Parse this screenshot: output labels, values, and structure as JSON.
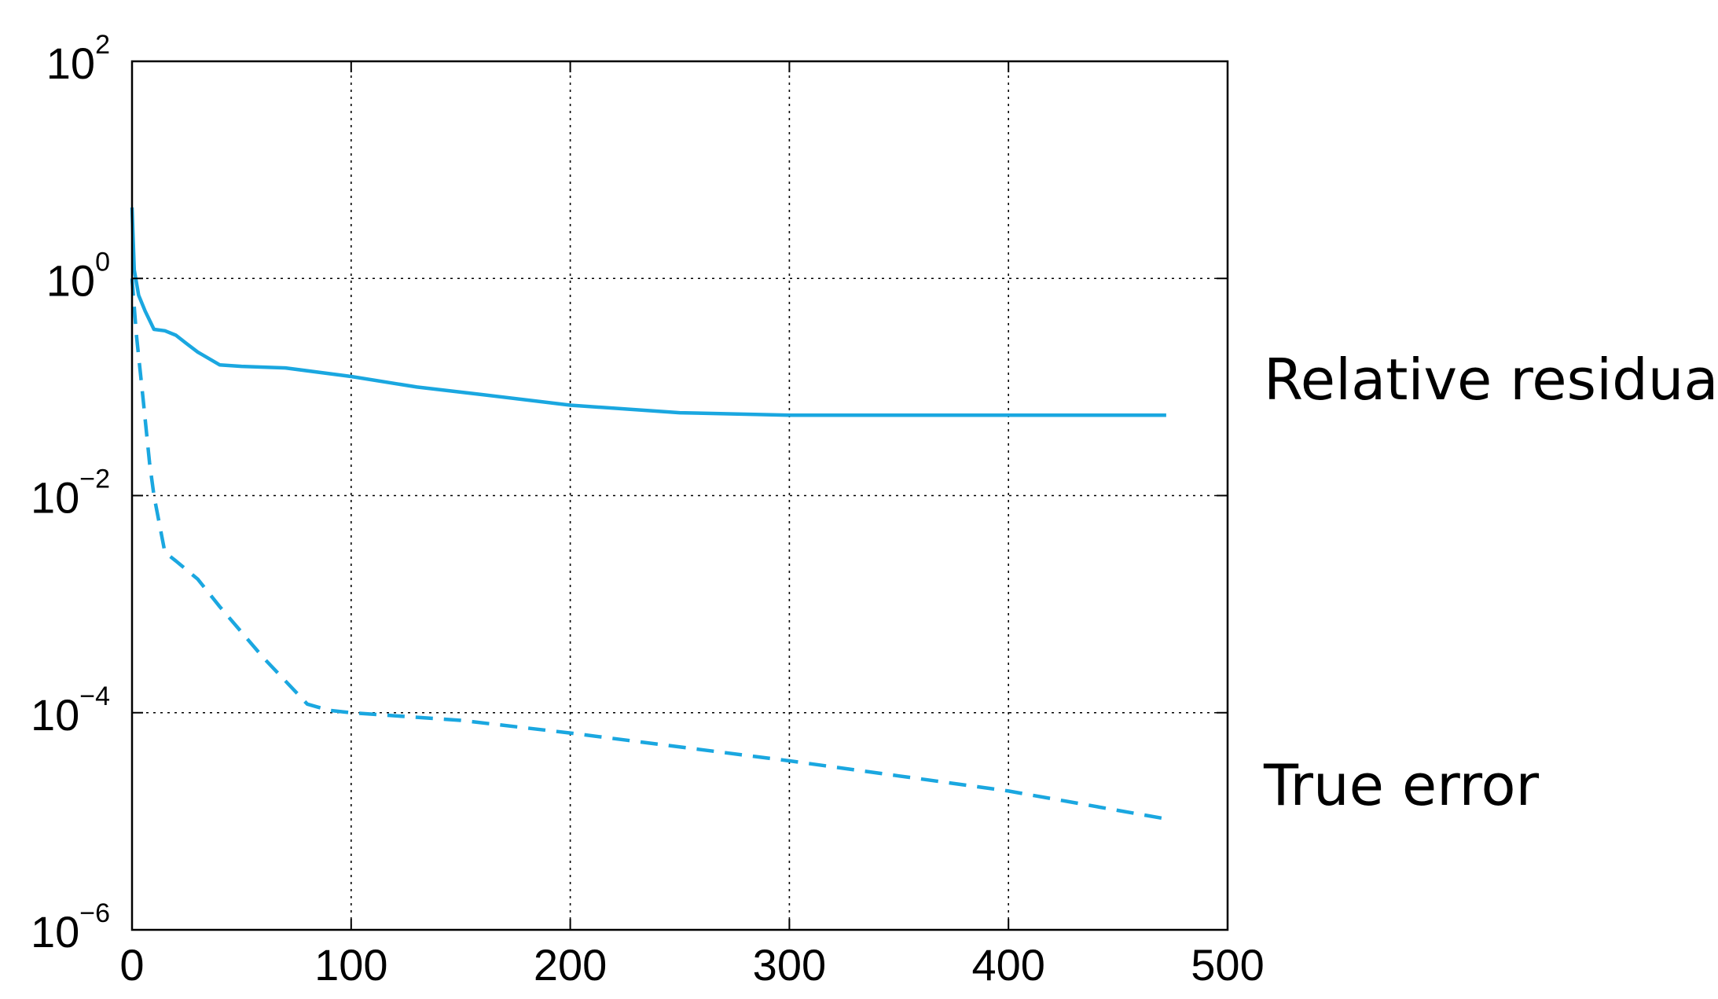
{
  "chart_data": {
    "type": "line",
    "title": "",
    "xlabel": "",
    "ylabel": "",
    "xlim": [
      0,
      500
    ],
    "ylim": [
      1e-06,
      100
    ],
    "yscale": "log",
    "grid": true,
    "xticks": [
      0,
      100,
      200,
      300,
      400,
      500
    ],
    "xtick_labels": [
      "0",
      "100",
      "200",
      "300",
      "400",
      "500"
    ],
    "yticks": [
      1e-06,
      0.0001,
      0.01,
      1,
      100
    ],
    "ytick_labels": [
      {
        "base": "10",
        "exp": "−6"
      },
      {
        "base": "10",
        "exp": "−4"
      },
      {
        "base": "10",
        "exp": "−2"
      },
      {
        "base": "10",
        "exp": "0"
      },
      {
        "base": "10",
        "exp": "2"
      }
    ],
    "series": [
      {
        "name": "Relative residual",
        "style": "solid",
        "color": "#1aa7e0",
        "x": [
          0,
          1,
          3,
          6,
          10,
          15,
          20,
          25,
          30,
          40,
          50,
          70,
          100,
          130,
          160,
          200,
          250,
          300,
          350,
          400,
          472
        ],
        "y": [
          4.5,
          1.2,
          0.7,
          0.5,
          0.34,
          0.33,
          0.3,
          0.25,
          0.21,
          0.16,
          0.155,
          0.15,
          0.125,
          0.1,
          0.085,
          0.068,
          0.058,
          0.055,
          0.055,
          0.055,
          0.055
        ]
      },
      {
        "name": "True error",
        "style": "dashed",
        "color": "#1aa7e0",
        "x": [
          0,
          2,
          5,
          8,
          10,
          15,
          20,
          30,
          40,
          60,
          80,
          90,
          100,
          150,
          200,
          300,
          400,
          472
        ],
        "y": [
          1.0,
          0.3,
          0.08,
          0.02,
          0.01,
          0.003,
          0.0025,
          0.0017,
          0.00095,
          0.00032,
          0.00012,
          0.000105,
          0.0001,
          8.5e-05,
          6.5e-05,
          3.6e-05,
          1.9e-05,
          1.05e-05
        ]
      }
    ]
  }
}
